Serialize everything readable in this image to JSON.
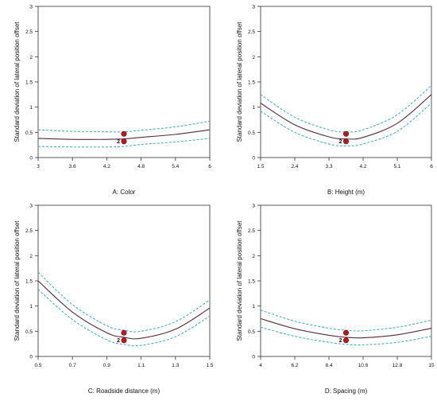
{
  "chart_data": [
    {
      "type": "line",
      "title": "",
      "xlabel": "A: Color",
      "ylabel": "Standard deviation of lateral position offset",
      "xlim": [
        3,
        6
      ],
      "ylim": [
        0,
        3
      ],
      "xticks": [
        "3",
        "3.6",
        "4.2",
        "4.8",
        "5.4",
        "6"
      ],
      "yticks": [
        "0",
        "0.5",
        "1",
        "1.5",
        "2",
        "2.5",
        "3"
      ],
      "grid": false,
      "series": [
        {
          "style": "solid",
          "color": "#5a2a3a",
          "x": [
            3,
            3.6,
            4.2,
            4.5,
            4.8,
            5.4,
            6
          ],
          "y": [
            0.38,
            0.36,
            0.36,
            0.37,
            0.4,
            0.46,
            0.55
          ]
        },
        {
          "style": "dashed",
          "color": "#2fb0b8",
          "x": [
            3,
            3.6,
            4.2,
            4.5,
            4.8,
            5.4,
            6
          ],
          "y": [
            0.55,
            0.52,
            0.51,
            0.51,
            0.54,
            0.61,
            0.72
          ]
        },
        {
          "style": "dashed",
          "color": "#2fb0b8",
          "x": [
            3,
            3.6,
            4.2,
            4.5,
            4.8,
            5.4,
            6
          ],
          "y": [
            0.22,
            0.21,
            0.21,
            0.22,
            0.26,
            0.31,
            0.38
          ]
        }
      ],
      "design_points": {
        "x": 4.5,
        "y": [
          0.32,
          0.47
        ],
        "label": "2",
        "color": "#c01818"
      }
    },
    {
      "type": "line",
      "title": "",
      "xlabel": "B: Height (m)",
      "ylabel": "Standard deviation of lateral position offset",
      "xlim": [
        1.5,
        6
      ],
      "ylim": [
        0,
        3
      ],
      "xticks": [
        "1.5",
        "2.4",
        "3.3",
        "4.2",
        "5.1",
        "6"
      ],
      "yticks": [
        "0",
        "0.5",
        "1",
        "1.5",
        "2",
        "2.5",
        "3"
      ],
      "grid": false,
      "series": [
        {
          "style": "solid",
          "color": "#5a2a3a",
          "x": [
            1.5,
            2.4,
            3.3,
            3.75,
            4.2,
            5.1,
            6
          ],
          "y": [
            1.08,
            0.65,
            0.41,
            0.37,
            0.4,
            0.68,
            1.25
          ]
        },
        {
          "style": "dashed",
          "color": "#2fb0b8",
          "x": [
            1.5,
            2.4,
            3.3,
            3.75,
            4.2,
            5.1,
            6
          ],
          "y": [
            1.25,
            0.8,
            0.55,
            0.51,
            0.55,
            0.85,
            1.43
          ]
        },
        {
          "style": "dashed",
          "color": "#2fb0b8",
          "x": [
            1.5,
            2.4,
            3.3,
            3.75,
            4.2,
            5.1,
            6
          ],
          "y": [
            0.92,
            0.5,
            0.27,
            0.23,
            0.27,
            0.52,
            1.08
          ]
        }
      ],
      "design_points": {
        "x": 3.75,
        "y": [
          0.32,
          0.47
        ],
        "label": "2",
        "color": "#c01818"
      }
    },
    {
      "type": "line",
      "title": "",
      "xlabel": "C: Roadside distance (m)",
      "ylabel": "Standard deviation of lateral position offset",
      "xlim": [
        0.5,
        1.5
      ],
      "ylim": [
        0,
        3
      ],
      "xticks": [
        "0.5",
        "0.7",
        "0.9",
        "1.1",
        "1.3",
        "1.5"
      ],
      "yticks": [
        "0",
        "0.5",
        "1",
        "1.5",
        "2",
        "2.5",
        "3"
      ],
      "grid": false,
      "series": [
        {
          "style": "solid",
          "color": "#5a2a3a",
          "x": [
            0.5,
            0.7,
            0.9,
            1.0,
            1.1,
            1.3,
            1.5
          ],
          "y": [
            1.5,
            0.88,
            0.47,
            0.38,
            0.36,
            0.54,
            0.96
          ]
        },
        {
          "style": "dashed",
          "color": "#2fb0b8",
          "x": [
            0.5,
            0.7,
            0.9,
            1.0,
            1.1,
            1.3,
            1.5
          ],
          "y": [
            1.67,
            1.03,
            0.61,
            0.52,
            0.5,
            0.69,
            1.12
          ]
        },
        {
          "style": "dashed",
          "color": "#2fb0b8",
          "x": [
            0.5,
            0.7,
            0.9,
            1.0,
            1.1,
            1.3,
            1.5
          ],
          "y": [
            1.33,
            0.73,
            0.33,
            0.24,
            0.22,
            0.39,
            0.8
          ]
        }
      ],
      "design_points": {
        "x": 1.0,
        "y": [
          0.32,
          0.47
        ],
        "label": "2",
        "color": "#c01818"
      }
    },
    {
      "type": "line",
      "title": "",
      "xlabel": "D: Spacing (m)",
      "ylabel": "Standard deviation of lateral position offset",
      "xlim": [
        4,
        15
      ],
      "ylim": [
        0,
        3
      ],
      "xticks": [
        "4",
        "6.2",
        "8.4",
        "10.6",
        "12.8",
        "15"
      ],
      "yticks": [
        "0",
        "0.5",
        "1",
        "1.5",
        "2",
        "2.5",
        "3"
      ],
      "grid": false,
      "series": [
        {
          "style": "solid",
          "color": "#5a2a3a",
          "x": [
            4,
            6.2,
            8.4,
            9.5,
            10.6,
            12.8,
            15
          ],
          "y": [
            0.75,
            0.55,
            0.42,
            0.38,
            0.37,
            0.43,
            0.56
          ]
        },
        {
          "style": "dashed",
          "color": "#2fb0b8",
          "x": [
            4,
            6.2,
            8.4,
            9.5,
            10.6,
            12.8,
            15
          ],
          "y": [
            0.92,
            0.7,
            0.56,
            0.52,
            0.51,
            0.58,
            0.72
          ]
        },
        {
          "style": "dashed",
          "color": "#2fb0b8",
          "x": [
            4,
            6.2,
            8.4,
            9.5,
            10.6,
            12.8,
            15
          ],
          "y": [
            0.58,
            0.4,
            0.28,
            0.24,
            0.23,
            0.28,
            0.4
          ]
        }
      ],
      "design_points": {
        "x": 9.5,
        "y": [
          0.32,
          0.47
        ],
        "label": "2",
        "color": "#c01818"
      }
    }
  ]
}
